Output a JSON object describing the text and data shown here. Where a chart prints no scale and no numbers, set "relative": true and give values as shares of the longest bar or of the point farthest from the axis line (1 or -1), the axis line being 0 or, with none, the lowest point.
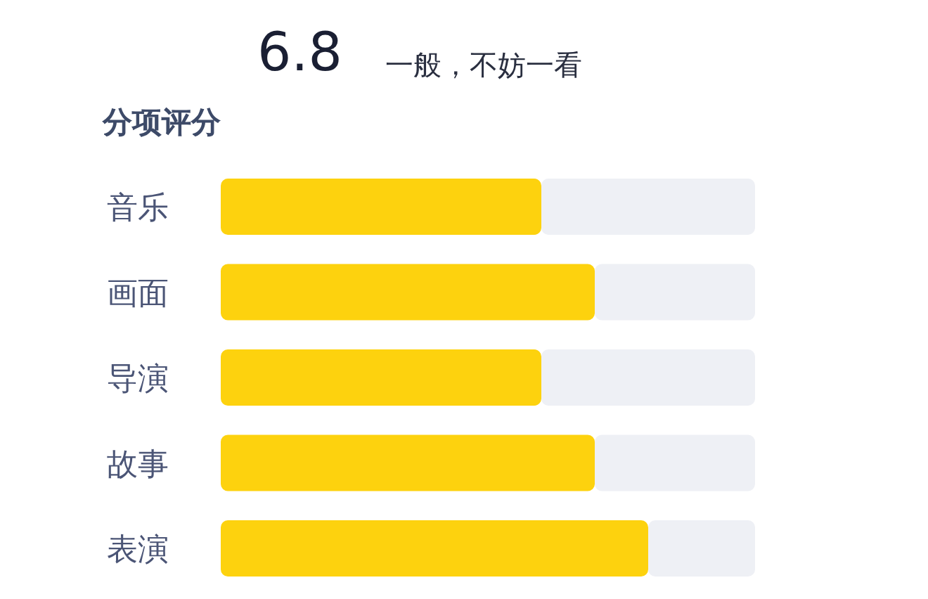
{
  "chart_data": {
    "type": "bar",
    "orientation": "horizontal",
    "stacked": true,
    "relative": true,
    "title": "分项评分",
    "annotations": [
      "6.8",
      "一般，不妨一看"
    ],
    "categories": [
      "音乐",
      "画面",
      "导演",
      "故事",
      "表演"
    ],
    "series": [
      {
        "color": "#fdd20e",
        "values": [
          0.6,
          0.7,
          0.6,
          0.7,
          0.8
        ]
      },
      {
        "color": "#eef0f5",
        "values": [
          0.4,
          0.3,
          0.4,
          0.3,
          0.2
        ]
      }
    ]
  }
}
